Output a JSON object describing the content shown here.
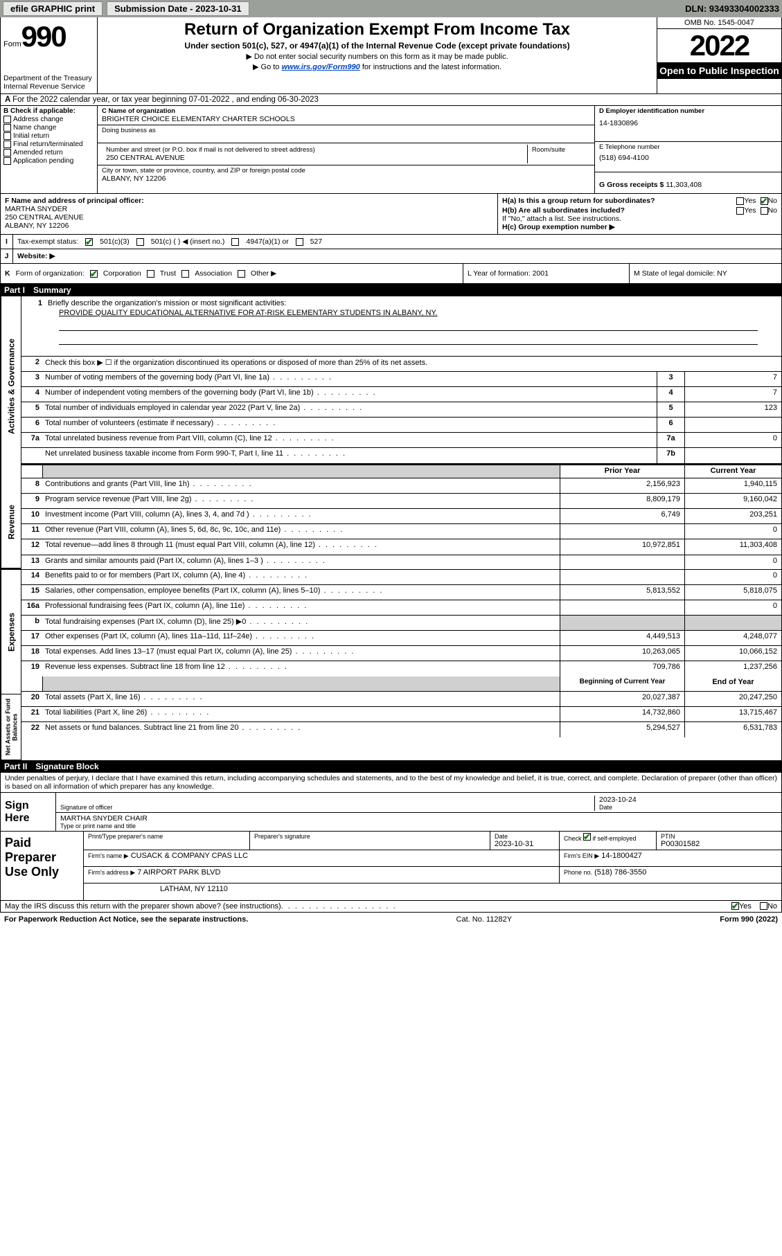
{
  "topbar": {
    "efile_label": "efile GRAPHIC print",
    "submission_label": "Submission Date - 2023-10-31",
    "dln_label": "DLN: 93493304002333"
  },
  "header": {
    "form_word": "Form",
    "form_number": "990",
    "title": "Return of Organization Exempt From Income Tax",
    "subtitle": "Under section 501(c), 527, or 4947(a)(1) of the Internal Revenue Code (except private foundations)",
    "instruction1": "▶ Do not enter social security numbers on this form as it may be made public.",
    "instruction2_prefix": "▶ Go to ",
    "instruction2_link": "www.irs.gov/Form990",
    "instruction2_suffix": " for instructions and the latest information.",
    "omb": "OMB No. 1545-0047",
    "year": "2022",
    "open_public": "Open to Public Inspection",
    "dept": "Department of the Treasury",
    "irs": "Internal Revenue Service"
  },
  "row_a": {
    "text": "For the 2022 calendar year, or tax year beginning 07-01-2022   , and ending 06-30-2023",
    "prefix": "A"
  },
  "section_b": {
    "header": "B Check if applicable:",
    "items": [
      "Address change",
      "Name change",
      "Initial return",
      "Final return/terminated",
      "Amended return",
      "Application pending"
    ]
  },
  "section_c": {
    "name_label": "C Name of organization",
    "name": "BRIGHTER CHOICE ELEMENTARY CHARTER SCHOOLS",
    "dba_label": "Doing business as",
    "street_label": "Number and street (or P.O. box if mail is not delivered to street address)",
    "room_label": "Room/suite",
    "street": "250 CENTRAL AVENUE",
    "city_label": "City or town, state or province, country, and ZIP or foreign postal code",
    "city": "ALBANY, NY  12206"
  },
  "section_d": {
    "label": "D Employer identification number",
    "value": "14-1830896"
  },
  "section_e": {
    "label": "E Telephone number",
    "value": "(518) 694-4100"
  },
  "section_g": {
    "label": "G Gross receipts $",
    "value": "11,303,408"
  },
  "section_f": {
    "label": "F  Name and address of principal officer:",
    "name": "MARTHA SNYDER",
    "street": "250 CENTRAL AVENUE",
    "city": "ALBANY, NY  12206"
  },
  "section_h": {
    "ha_label": "H(a)  Is this a group return for subordinates?",
    "hb_label": "H(b)  Are all subordinates included?",
    "hb_note": "If \"No,\" attach a list. See instructions.",
    "hc_label": "H(c)  Group exemption number ▶",
    "yes": "Yes",
    "no": "No"
  },
  "section_i": {
    "label": "Tax-exempt status:",
    "opt1": "501(c)(3)",
    "opt2": "501(c) (   ) ◀ (insert no.)",
    "opt3": "4947(a)(1) or",
    "opt4": "527",
    "letter": "I"
  },
  "section_j": {
    "letter": "J",
    "label": "Website: ▶"
  },
  "section_k": {
    "letter": "K",
    "label": "Form of organization:",
    "opts": [
      "Corporation",
      "Trust",
      "Association",
      "Other ▶"
    ]
  },
  "section_l": {
    "label": "L Year of formation: 2001"
  },
  "section_m": {
    "label": "M State of legal domicile: NY"
  },
  "part1": {
    "name": "Part I",
    "title": "Summary"
  },
  "mission": {
    "num": "1",
    "label": "Briefly describe the organization's mission or most significant activities:",
    "text": "PROVIDE QUALITY EDUCATIONAL ALTERNATIVE FOR AT-RISK ELEMENTARY STUDENTS IN ALBANY, NY."
  },
  "gov_lines": [
    {
      "num": "2",
      "desc": "Check this box ▶ ☐  if the organization discontinued its operations or disposed of more than 25% of its net assets."
    },
    {
      "num": "3",
      "desc": "Number of voting members of the governing body (Part VI, line 1a)",
      "box": "3",
      "val": "7"
    },
    {
      "num": "4",
      "desc": "Number of independent voting members of the governing body (Part VI, line 1b)",
      "box": "4",
      "val": "7"
    },
    {
      "num": "5",
      "desc": "Total number of individuals employed in calendar year 2022 (Part V, line 2a)",
      "box": "5",
      "val": "123"
    },
    {
      "num": "6",
      "desc": "Total number of volunteers (estimate if necessary)",
      "box": "6",
      "val": ""
    },
    {
      "num": "7a",
      "desc": "Total unrelated business revenue from Part VIII, column (C), line 12",
      "box": "7a",
      "val": "0"
    },
    {
      "num": "",
      "desc": "Net unrelated business taxable income from Form 990-T, Part I, line 11",
      "box": "7b",
      "val": ""
    }
  ],
  "col_headers": {
    "prior": "Prior Year",
    "current": "Current Year"
  },
  "revenue_lines": [
    {
      "num": "8",
      "desc": "Contributions and grants (Part VIII, line 1h)",
      "prior": "2,156,923",
      "current": "1,940,115"
    },
    {
      "num": "9",
      "desc": "Program service revenue (Part VIII, line 2g)",
      "prior": "8,809,179",
      "current": "9,160,042"
    },
    {
      "num": "10",
      "desc": "Investment income (Part VIII, column (A), lines 3, 4, and 7d )",
      "prior": "6,749",
      "current": "203,251"
    },
    {
      "num": "11",
      "desc": "Other revenue (Part VIII, column (A), lines 5, 6d, 8c, 9c, 10c, and 11e)",
      "prior": "",
      "current": "0"
    },
    {
      "num": "12",
      "desc": "Total revenue—add lines 8 through 11 (must equal Part VIII, column (A), line 12)",
      "prior": "10,972,851",
      "current": "11,303,408"
    }
  ],
  "expense_lines": [
    {
      "num": "13",
      "desc": "Grants and similar amounts paid (Part IX, column (A), lines 1–3 )",
      "prior": "",
      "current": "0"
    },
    {
      "num": "14",
      "desc": "Benefits paid to or for members (Part IX, column (A), line 4)",
      "prior": "",
      "current": "0"
    },
    {
      "num": "15",
      "desc": "Salaries, other compensation, employee benefits (Part IX, column (A), lines 5–10)",
      "prior": "5,813,552",
      "current": "5,818,075"
    },
    {
      "num": "16a",
      "desc": "Professional fundraising fees (Part IX, column (A), line 11e)",
      "prior": "",
      "current": "0"
    },
    {
      "num": "b",
      "desc": "Total fundraising expenses (Part IX, column (D), line 25) ▶0",
      "prior": "shade",
      "current": "shade"
    },
    {
      "num": "17",
      "desc": "Other expenses (Part IX, column (A), lines 11a–11d, 11f–24e)",
      "prior": "4,449,513",
      "current": "4,248,077"
    },
    {
      "num": "18",
      "desc": "Total expenses. Add lines 13–17 (must equal Part IX, column (A), line 25)",
      "prior": "10,263,065",
      "current": "10,066,152"
    },
    {
      "num": "19",
      "desc": "Revenue less expenses. Subtract line 18 from line 12",
      "prior": "709,786",
      "current": "1,237,256"
    }
  ],
  "net_headers": {
    "begin": "Beginning of Current Year",
    "end": "End of Year"
  },
  "net_lines": [
    {
      "num": "20",
      "desc": "Total assets (Part X, line 16)",
      "prior": "20,027,387",
      "current": "20,247,250"
    },
    {
      "num": "21",
      "desc": "Total liabilities (Part X, line 26)",
      "prior": "14,732,860",
      "current": "13,715,467"
    },
    {
      "num": "22",
      "desc": "Net assets or fund balances. Subtract line 21 from line 20",
      "prior": "5,294,527",
      "current": "6,531,783"
    }
  ],
  "vert_labels": {
    "gov": "Activities & Governance",
    "rev": "Revenue",
    "exp": "Expenses",
    "net": "Net Assets or Fund Balances"
  },
  "part2": {
    "name": "Part II",
    "title": "Signature Block"
  },
  "sig": {
    "declaration": "Under penalties of perjury, I declare that I have examined this return, including accompanying schedules and statements, and to the best of my knowledge and belief, it is true, correct, and complete. Declaration of preparer (other than officer) is based on all information of which preparer has any knowledge.",
    "sign_here": "Sign Here",
    "sig_label": "Signature of officer",
    "date_label": "Date",
    "date": "2023-10-24",
    "name": "MARTHA SNYDER  CHAIR",
    "name_label": "Type or print name and title"
  },
  "paid": {
    "title": "Paid Preparer Use Only",
    "preparer_label": "Print/Type preparer's name",
    "sig_label": "Preparer's signature",
    "date_label": "Date",
    "date": "2023-10-31",
    "check_label": "Check ☑ if self-employed",
    "ptin_label": "PTIN",
    "ptin": "P00301582",
    "firm_name_label": "Firm's name    ▶",
    "firm_name": "CUSACK & COMPANY CPAS LLC",
    "firm_ein_label": "Firm's EIN ▶",
    "firm_ein": "14-1800427",
    "firm_addr_label": "Firm's address ▶",
    "firm_addr1": "7 AIRPORT PARK BLVD",
    "firm_addr2": "LATHAM, NY  12110",
    "phone_label": "Phone no.",
    "phone": "(518) 786-3550"
  },
  "bottom": {
    "discuss": "May the IRS discuss this return with the preparer shown above? (see instructions)",
    "yes": "Yes",
    "no": "No"
  },
  "footer": {
    "left": "For Paperwork Reduction Act Notice, see the separate instructions.",
    "mid": "Cat. No. 11282Y",
    "right": "Form 990 (2022)"
  }
}
